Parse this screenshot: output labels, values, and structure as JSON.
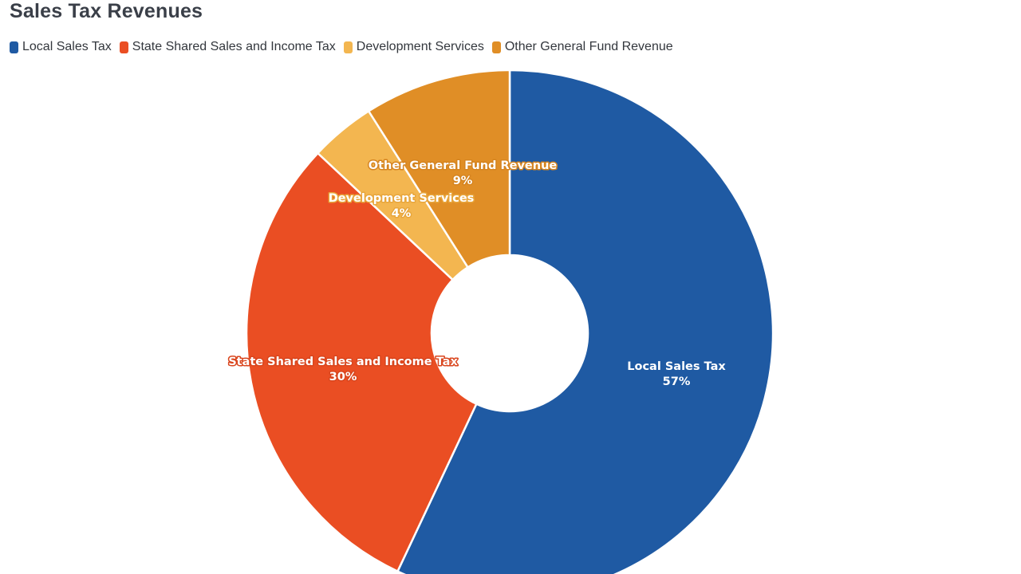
{
  "chart_data": {
    "type": "pie",
    "variant": "donut",
    "title": "Sales Tax Revenues",
    "legend_position": "top-left",
    "categories": [
      "Local Sales Tax",
      "State Shared Sales and Income Tax",
      "Development Services",
      "Other General Fund Revenue"
    ],
    "values": [
      57,
      30,
      4,
      9
    ],
    "value_labels": [
      "57%",
      "30%",
      "4%",
      "9%"
    ],
    "colors": [
      "#1f5aa3",
      "#ea4e23",
      "#f3b650",
      "#e08e26"
    ],
    "label_outline_colors": [
      "#1f5aa3",
      "#d9451d",
      "#e8a63c",
      "#d58420"
    ]
  }
}
